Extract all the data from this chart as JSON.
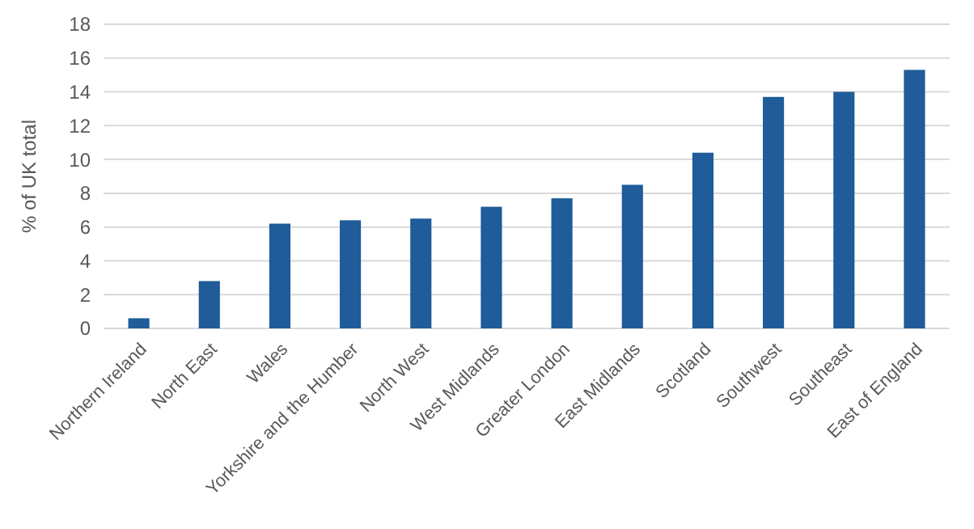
{
  "chart_data": {
    "type": "bar",
    "ylabel": "% of UK total",
    "categories": [
      "Northern Ireland",
      "North East",
      "Wales",
      "Yorkshire and the Humber",
      "North West",
      "West Midlands",
      "Greater London",
      "East Midlands",
      "Scotland",
      "Southwest",
      "Southeast",
      "East of England"
    ],
    "values": [
      0.6,
      2.8,
      6.2,
      6.4,
      6.5,
      7.2,
      7.7,
      8.5,
      10.4,
      13.7,
      14.0,
      15.3
    ],
    "color": "#1f5c99",
    "ylim": [
      0,
      18
    ],
    "yticks": [
      0,
      2,
      4,
      6,
      8,
      10,
      12,
      14,
      16,
      18
    ],
    "grid": "y"
  }
}
